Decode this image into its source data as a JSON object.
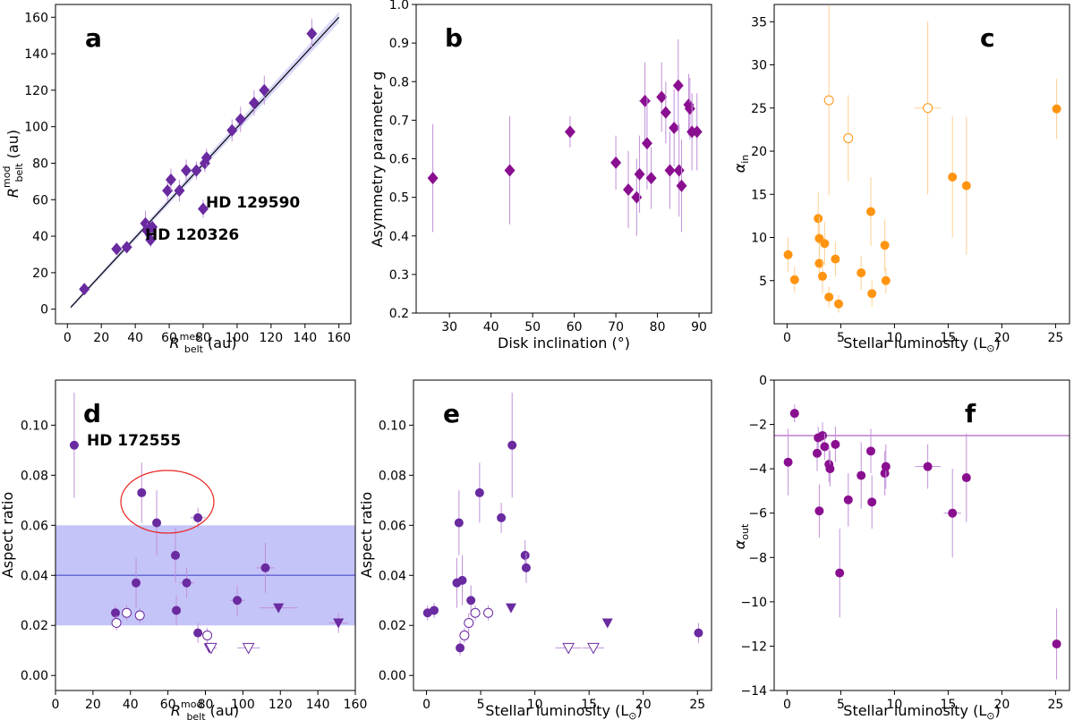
{
  "colors": {
    "purple": "#6a2aa0",
    "magenta": "#8a0f90",
    "orange": "#ff9410",
    "errPurple": "#c090d8",
    "errOrange": "#ffd090",
    "band": "#c4c4f8",
    "bandLine": "#6a6ad8",
    "circle": "#e8221e"
  },
  "chart_data": [
    {
      "panel": "a",
      "type": "scatter",
      "xlabel": "R_belt^mes (au)",
      "ylabel": "R_belt^mod (au)",
      "xlim": [
        -7,
        167
      ],
      "ylim": [
        -8,
        167
      ],
      "xticks": [
        0,
        20,
        40,
        60,
        80,
        100,
        120,
        140,
        160
      ],
      "yticks": [
        0,
        20,
        40,
        60,
        80,
        100,
        120,
        140,
        160
      ],
      "line": {
        "x": [
          2,
          160
        ],
        "y": [
          1,
          160
        ]
      },
      "annotations": [
        {
          "text": "HD 129590",
          "x": 87,
          "y": 57
        },
        {
          "text": "HD 120326",
          "x": 55,
          "y": 37
        }
      ],
      "points": [
        {
          "x": 10,
          "y": 11,
          "ey": 3
        },
        {
          "x": 29,
          "y": 33,
          "ey": 3
        },
        {
          "x": 35,
          "y": 34,
          "ey": 3
        },
        {
          "x": 46,
          "y": 47,
          "ey": 7
        },
        {
          "x": 47,
          "y": 43,
          "ey": 4
        },
        {
          "x": 49,
          "y": 38,
          "ey": 4
        },
        {
          "x": 50,
          "y": 45,
          "ey": 4
        },
        {
          "x": 59,
          "y": 65,
          "ey": 6
        },
        {
          "x": 61,
          "y": 71,
          "ey": 6
        },
        {
          "x": 66,
          "y": 65,
          "ey": 6
        },
        {
          "x": 70,
          "y": 76,
          "ey": 6
        },
        {
          "x": 76,
          "y": 76,
          "ey": 5
        },
        {
          "x": 80,
          "y": 55,
          "ey": 5
        },
        {
          "x": 81,
          "y": 80,
          "ey": 5
        },
        {
          "x": 82,
          "y": 83,
          "ey": 5
        },
        {
          "x": 97,
          "y": 98,
          "ey": 6
        },
        {
          "x": 102,
          "y": 104,
          "ey": 7
        },
        {
          "x": 110,
          "y": 113,
          "ey": 7
        },
        {
          "x": 116,
          "y": 120,
          "ey": 8
        },
        {
          "x": 144,
          "y": 151,
          "ey": 8
        }
      ]
    },
    {
      "panel": "b",
      "type": "scatter",
      "xlabel": "Disk inclination (°)",
      "ylabel": "Asymmetry parameter g",
      "xlim": [
        22,
        93
      ],
      "ylim": [
        0.2,
        1.0
      ],
      "xticks": [
        30,
        40,
        50,
        60,
        70,
        80,
        90
      ],
      "yticks": [
        0.2,
        0.3,
        0.4,
        0.5,
        0.6,
        0.7,
        0.8,
        0.9,
        1.0
      ],
      "points": [
        {
          "x": 26,
          "y": 0.55,
          "ey": 0.14
        },
        {
          "x": 44.5,
          "y": 0.57,
          "ey": 0.14
        },
        {
          "x": 59,
          "y": 0.67,
          "ey": 0.04
        },
        {
          "x": 70,
          "y": 0.59,
          "ey": 0.07
        },
        {
          "x": 73,
          "y": 0.52,
          "ey": 0.1
        },
        {
          "x": 75,
          "y": 0.5,
          "ey": 0.1
        },
        {
          "x": 75.7,
          "y": 0.56,
          "ey": 0.1
        },
        {
          "x": 77,
          "y": 0.75,
          "ey": 0.1,
          "ex": 1.5
        },
        {
          "x": 77.5,
          "y": 0.64,
          "ey": 0.12
        },
        {
          "x": 78.5,
          "y": 0.55,
          "ey": 0.08,
          "ex": 1.2
        },
        {
          "x": 81,
          "y": 0.76,
          "ey": 0.09,
          "ex": 1.2
        },
        {
          "x": 82,
          "y": 0.72,
          "ey": 0.08
        },
        {
          "x": 83,
          "y": 0.57,
          "ey": 0.1,
          "ex": 1.2
        },
        {
          "x": 84,
          "y": 0.68,
          "ey": 0.1
        },
        {
          "x": 85,
          "y": 0.79,
          "ey": 0.12
        },
        {
          "x": 85.2,
          "y": 0.57,
          "ey": 0.12
        },
        {
          "x": 85.8,
          "y": 0.53,
          "ey": 0.12
        },
        {
          "x": 87.5,
          "y": 0.74,
          "ey": 0.08
        },
        {
          "x": 87.8,
          "y": 0.73,
          "ey": 0.08
        },
        {
          "x": 88.3,
          "y": 0.67,
          "ey": 0.1
        },
        {
          "x": 89.5,
          "y": 0.67,
          "ey": 0.1
        }
      ]
    },
    {
      "panel": "c",
      "type": "scatter",
      "xlabel": "Stellar luminosity (L⊙)",
      "ylabel": "α_in",
      "xlim": [
        -1.2,
        26.3
      ],
      "ylim": [
        0,
        37
      ],
      "xticks": [
        0,
        5,
        10,
        15,
        20,
        25
      ],
      "yticks": [
        5,
        10,
        15,
        20,
        25,
        30,
        35
      ],
      "points": [
        {
          "x": 0.1,
          "y": 8.0,
          "ey": 2
        },
        {
          "x": 0.7,
          "y": 5.1,
          "ey": 1.5
        },
        {
          "x": 2.9,
          "y": 12.2,
          "ey": 3
        },
        {
          "x": 3.0,
          "y": 9.9,
          "ey": 2.5
        },
        {
          "x": 3.0,
          "y": 7.0,
          "ey": 2
        },
        {
          "x": 3.3,
          "y": 5.5,
          "ey": 2
        },
        {
          "x": 3.5,
          "y": 9.3,
          "ey": 2.5
        },
        {
          "x": 3.9,
          "y": 3.1,
          "ey": 1.2
        },
        {
          "x": 3.9,
          "y": 25.9,
          "ey": 11,
          "open": true
        },
        {
          "x": 4.5,
          "y": 7.5,
          "ey": 2
        },
        {
          "x": 4.8,
          "y": 2.3,
          "ey": 1
        },
        {
          "x": 5.7,
          "y": 21.5,
          "ey": 5,
          "open": true
        },
        {
          "x": 6.9,
          "y": 5.9,
          "ey": 2
        },
        {
          "x": 7.8,
          "y": 13.0,
          "ey": 4
        },
        {
          "x": 7.9,
          "y": 3.5,
          "ey": 1.5
        },
        {
          "x": 9.1,
          "y": 9.1,
          "ey": 3
        },
        {
          "x": 9.2,
          "y": 5.0,
          "ey": 1.5
        },
        {
          "x": 13.1,
          "y": 25.0,
          "ey": 10,
          "ex": 1.2,
          "open": true
        },
        {
          "x": 15.4,
          "y": 17.0,
          "ey": 7
        },
        {
          "x": 16.7,
          "y": 16.0,
          "ey": 8
        },
        {
          "x": 25.1,
          "y": 24.9,
          "ey": 3.5
        }
      ]
    },
    {
      "panel": "d",
      "type": "scatter",
      "xlabel": "R_belt^mod (au)",
      "ylabel": "Aspect ratio",
      "xlim": [
        0,
        160
      ],
      "ylim": [
        -0.006,
        0.118
      ],
      "xticks": [
        0,
        20,
        40,
        60,
        80,
        100,
        120,
        140,
        160
      ],
      "yticks": [
        0.0,
        0.02,
        0.04,
        0.06,
        0.08,
        0.1
      ],
      "band": {
        "y0": 0.02,
        "y1": 0.06,
        "line": 0.04
      },
      "annotations": [
        {
          "text": "HD 172555",
          "x": 17,
          "y": 0.092
        }
      ],
      "points": [
        {
          "x": 10,
          "y": 0.092,
          "ey": 0.021
        },
        {
          "x": 32,
          "y": 0.025,
          "ey": 0.003
        },
        {
          "x": 32.5,
          "y": 0.021,
          "ey": 0.003,
          "open": true
        },
        {
          "x": 38,
          "y": 0.025,
          "ey": 0.003,
          "open": true
        },
        {
          "x": 43,
          "y": 0.037,
          "ey": 0.01
        },
        {
          "x": 45,
          "y": 0.024,
          "ey": 0.003,
          "open": true
        },
        {
          "x": 46,
          "y": 0.073,
          "ey": 0.012
        },
        {
          "x": 54,
          "y": 0.061,
          "ey": 0.013
        },
        {
          "x": 64,
          "y": 0.048,
          "ey": 0.011
        },
        {
          "x": 64.5,
          "y": 0.026,
          "ey": 0.006
        },
        {
          "x": 70,
          "y": 0.037,
          "ey": 0.006,
          "ex": 4
        },
        {
          "x": 76,
          "y": 0.063,
          "ey": 0.004,
          "ex": 4
        },
        {
          "x": 76,
          "y": 0.017,
          "ey": 0.004
        },
        {
          "x": 81,
          "y": 0.016,
          "ey": 0.003,
          "open": true
        },
        {
          "x": 82,
          "y": 0.011,
          "ey": 0.002,
          "marker": "tri-down-filled"
        },
        {
          "x": 83,
          "y": 0.011,
          "ey": 0.002,
          "ex": 3,
          "marker": "tri-down-open"
        },
        {
          "x": 97,
          "y": 0.03,
          "ey": 0.006,
          "ex": 4
        },
        {
          "x": 103,
          "y": 0.011,
          "ex": 6,
          "marker": "tri-down-open"
        },
        {
          "x": 112,
          "y": 0.043,
          "ey": 0.01,
          "ex": 5
        },
        {
          "x": 119,
          "y": 0.027,
          "ex": 10,
          "marker": "tri-down-filled"
        },
        {
          "x": 151,
          "y": 0.021,
          "ey": 0.004,
          "ex": 5,
          "marker": "tri-down-filled"
        }
      ]
    },
    {
      "panel": "e",
      "type": "scatter",
      "xlabel": "Stellar luminosity (L⊙)",
      "ylabel": "Aspect ratio",
      "xlim": [
        -1.2,
        26.3
      ],
      "ylim": [
        -0.006,
        0.118
      ],
      "xticks": [
        0,
        5,
        10,
        15,
        20,
        25
      ],
      "yticks": [
        0.0,
        0.02,
        0.04,
        0.06,
        0.08,
        0.1
      ],
      "points": [
        {
          "x": 0.1,
          "y": 0.025,
          "ey": 0.003
        },
        {
          "x": 0.7,
          "y": 0.026,
          "ey": 0.003
        },
        {
          "x": 2.8,
          "y": 0.037,
          "ey": 0.01
        },
        {
          "x": 3.0,
          "y": 0.061,
          "ey": 0.013
        },
        {
          "x": 3.1,
          "y": 0.011,
          "ey": 0.003
        },
        {
          "x": 3.3,
          "y": 0.038,
          "ey": 0.01
        },
        {
          "x": 3.5,
          "y": 0.016,
          "ey": 0.003,
          "open": true
        },
        {
          "x": 3.9,
          "y": 0.021,
          "ey": 0.004,
          "open": true
        },
        {
          "x": 4.1,
          "y": 0.03,
          "ey": 0.006
        },
        {
          "x": 4.5,
          "y": 0.025,
          "ey": 0.003,
          "open": true
        },
        {
          "x": 4.9,
          "y": 0.073,
          "ey": 0.012
        },
        {
          "x": 5.7,
          "y": 0.025,
          "ey": 0.003,
          "open": true
        },
        {
          "x": 6.9,
          "y": 0.063,
          "ey": 0.006
        },
        {
          "x": 7.8,
          "y": 0.027,
          "marker": "tri-down-filled"
        },
        {
          "x": 7.9,
          "y": 0.092,
          "ey": 0.021
        },
        {
          "x": 9.1,
          "y": 0.048,
          "ey": 0.006
        },
        {
          "x": 9.2,
          "y": 0.043,
          "ey": 0.006
        },
        {
          "x": 13.1,
          "y": 0.011,
          "ex": 1.2,
          "marker": "tri-down-open"
        },
        {
          "x": 15.4,
          "y": 0.011,
          "ex": 1.0,
          "marker": "tri-down-open"
        },
        {
          "x": 16.7,
          "y": 0.021,
          "marker": "tri-down-filled"
        },
        {
          "x": 25.1,
          "y": 0.017,
          "ey": 0.004
        }
      ]
    },
    {
      "panel": "f",
      "type": "scatter",
      "xlabel": "Stellar luminosity (L⊙)",
      "ylabel": "α_out",
      "xlim": [
        -1.2,
        26.3
      ],
      "ylim": [
        -14,
        0
      ],
      "xticks": [
        0,
        5,
        10,
        15,
        20,
        25
      ],
      "yticks": [
        -14,
        -12,
        -10,
        -8,
        -6,
        -4,
        -2,
        0
      ],
      "hline": -2.5,
      "points": [
        {
          "x": 0.1,
          "y": -3.7,
          "ey": 1.5
        },
        {
          "x": 0.7,
          "y": -1.5,
          "ey": 0.4
        },
        {
          "x": 2.8,
          "y": -3.3,
          "ey": 0.8
        },
        {
          "x": 2.9,
          "y": -2.6,
          "ey": 0.5
        },
        {
          "x": 3.0,
          "y": -5.9,
          "ey": 1.2
        },
        {
          "x": 3.3,
          "y": -2.5,
          "ey": 0.6
        },
        {
          "x": 3.5,
          "y": -3.0,
          "ey": 0.6
        },
        {
          "x": 3.9,
          "y": -3.8,
          "ey": 0.8
        },
        {
          "x": 4.0,
          "y": -4.0,
          "ey": 0.8
        },
        {
          "x": 4.5,
          "y": -2.9,
          "ey": 0.8
        },
        {
          "x": 4.9,
          "y": -8.7,
          "ey": 2
        },
        {
          "x": 5.7,
          "y": -5.4,
          "ey": 1.2
        },
        {
          "x": 6.9,
          "y": -4.3,
          "ey": 1.5
        },
        {
          "x": 7.8,
          "y": -3.2,
          "ey": 1
        },
        {
          "x": 7.9,
          "y": -5.5,
          "ey": 1.2
        },
        {
          "x": 9.1,
          "y": -4.2,
          "ey": 1
        },
        {
          "x": 9.2,
          "y": -3.9,
          "ey": 1
        },
        {
          "x": 13.1,
          "y": -3.9,
          "ey": 1,
          "ex": 1.2
        },
        {
          "x": 15.4,
          "y": -6.0,
          "ey": 2,
          "ex": 0.8
        },
        {
          "x": 16.7,
          "y": -4.4,
          "ey": 2
        },
        {
          "x": 25.1,
          "y": -11.9,
          "ey": 1.6
        }
      ]
    }
  ],
  "labels": {
    "a": "a",
    "b": "b",
    "c": "c",
    "d": "d",
    "e": "e",
    "f": "f",
    "xa_main": "R",
    "xa_sup": "mes",
    "xa_sub": "belt",
    "xa_unit": " (au)",
    "ya_main": "R",
    "ya_sup": "mod",
    "ya_sub": "belt",
    "ya_unit": " (au)",
    "xb": "Disk inclination (°)",
    "yb": "Asymmetry parameter g",
    "xlum_pre": "Stellar luminosity (L",
    "xlum_sub": "⊙",
    "xlum_post": ")",
    "yc_main": "α",
    "yc_sub": "in",
    "xd_main": "R",
    "xd_sup": "mod",
    "xd_sub": "belt",
    "xd_unit": " (au)",
    "yd": "Aspect ratio",
    "ye": "Aspect ratio",
    "yf_main": "α",
    "yf_sub": "out",
    "ann_129590": "HD 129590",
    "ann_120326": "HD 120326",
    "ann_172555": "HD 172555"
  }
}
